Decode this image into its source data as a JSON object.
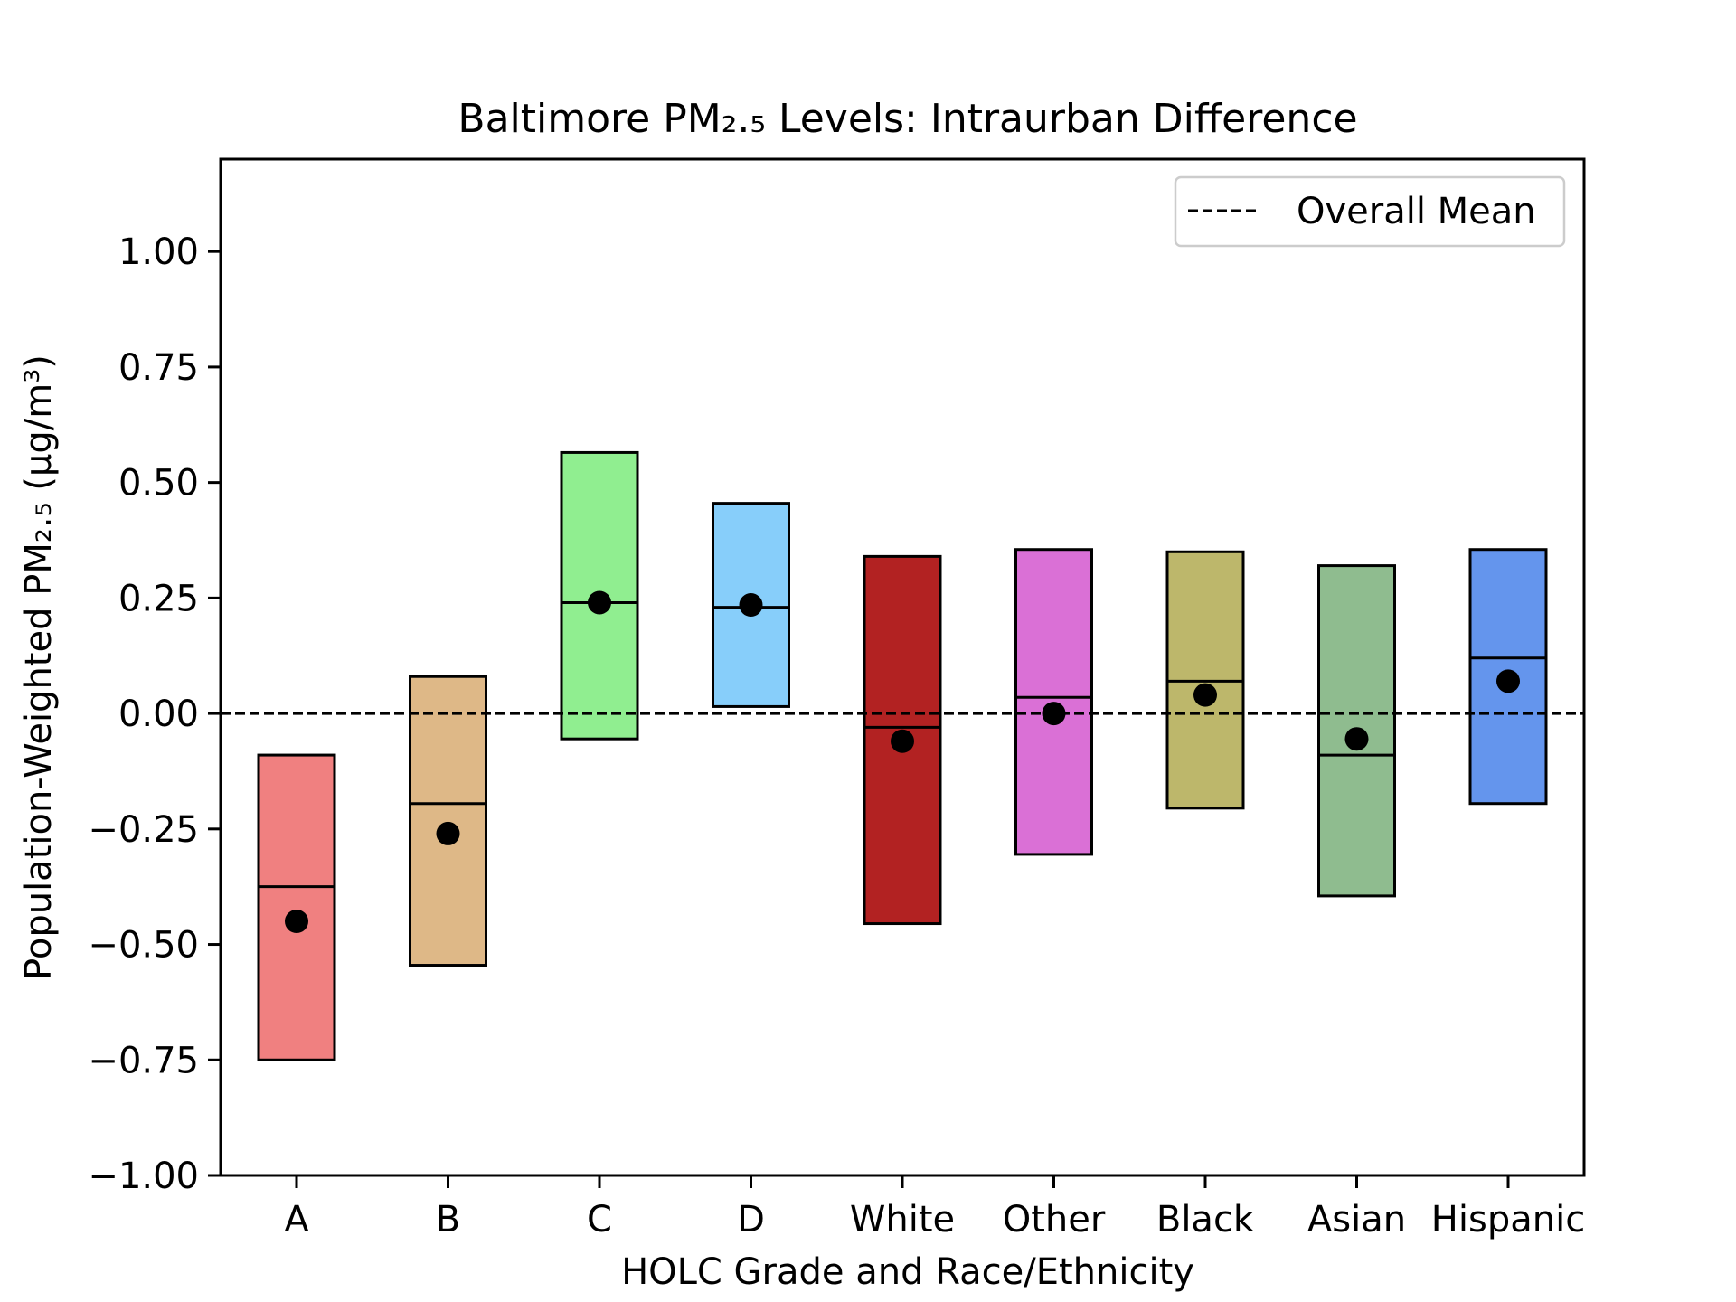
{
  "chart_data": {
    "type": "box",
    "title": "Baltimore PM₂.₅ Levels: Intraurban Difference",
    "xlabel": "HOLC Grade and Race/Ethnicity",
    "ylabel": "Population-Weighted PM₂.₅ (μg/m³)",
    "ylim": [
      -1.0,
      1.2
    ],
    "yticks": [
      -1.0,
      -0.75,
      -0.5,
      -0.25,
      0.0,
      0.25,
      0.5,
      0.75,
      1.0
    ],
    "ytick_labels": [
      "−1.00",
      "−0.75",
      "−0.50",
      "−0.25",
      "0.00",
      "0.25",
      "0.50",
      "0.75",
      "1.00"
    ],
    "grid": false,
    "legend": {
      "placement": "top-right",
      "entries": [
        {
          "label": "Overall Mean",
          "style": "dashed",
          "color": "#000000"
        }
      ]
    },
    "reference_line": {
      "label": "Overall Mean",
      "y": 0.0,
      "style": "dashed"
    },
    "categories": [
      "A",
      "B",
      "C",
      "D",
      "White",
      "Other",
      "Black",
      "Asian",
      "Hispanic"
    ],
    "boxes": [
      {
        "category": "A",
        "q1": -0.75,
        "median": -0.375,
        "q3": -0.09,
        "mean": -0.45,
        "color": "#f08080"
      },
      {
        "category": "B",
        "q1": -0.545,
        "median": -0.195,
        "q3": 0.08,
        "mean": -0.26,
        "color": "#deb887"
      },
      {
        "category": "C",
        "q1": -0.055,
        "median": 0.24,
        "q3": 0.565,
        "mean": 0.24,
        "color": "#90ee90"
      },
      {
        "category": "D",
        "q1": 0.015,
        "median": 0.23,
        "q3": 0.455,
        "mean": 0.235,
        "color": "#87cefa"
      },
      {
        "category": "White",
        "q1": -0.455,
        "median": -0.03,
        "q3": 0.34,
        "mean": -0.06,
        "color": "#b22222"
      },
      {
        "category": "Other",
        "q1": -0.305,
        "median": 0.035,
        "q3": 0.355,
        "mean": 0.0,
        "color": "#da70d6"
      },
      {
        "category": "Black",
        "q1": -0.205,
        "median": 0.07,
        "q3": 0.35,
        "mean": 0.04,
        "color": "#bdb76b"
      },
      {
        "category": "Asian",
        "q1": -0.395,
        "median": -0.09,
        "q3": 0.32,
        "mean": -0.055,
        "color": "#8fbc8f"
      },
      {
        "category": "Hispanic",
        "q1": -0.195,
        "median": 0.12,
        "q3": 0.355,
        "mean": 0.07,
        "color": "#6495ed"
      }
    ]
  }
}
